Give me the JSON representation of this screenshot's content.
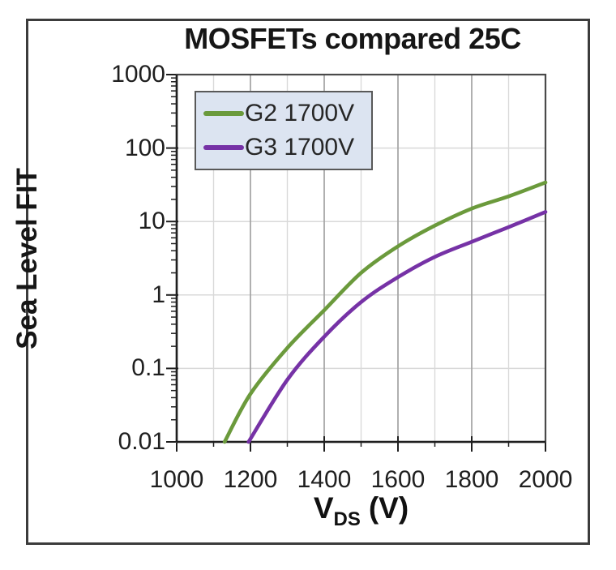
{
  "chart_data": {
    "type": "line",
    "title": "MOSFETs compared 25C",
    "ylabel": "Sea Level FIT",
    "xlabel": {
      "symbol": "V",
      "subscript": "DS",
      "unit": "(V)"
    },
    "x_axis": {
      "min": 1000,
      "max": 2000,
      "major_ticks": [
        1000,
        1200,
        1400,
        1600,
        1800,
        2000
      ],
      "minor_step": 100
    },
    "y_axis": {
      "scale": "log",
      "min": 0.01,
      "max": 1000,
      "decades": 5,
      "tick_labels": [
        "1000",
        "100",
        "10",
        "1",
        "0.1",
        "0.01"
      ],
      "tick_values": [
        1000,
        100,
        10,
        1,
        0.1,
        0.01
      ]
    },
    "grid": {
      "horizontal": "#d9d9d9",
      "vertical_minor": "#d9d9d9",
      "vertical_major": "#a3a3a3"
    },
    "axis_color": "#1f1f1f",
    "legend": {
      "fill": "#dce4f1",
      "border": "#595959"
    },
    "series": [
      {
        "id": "g2",
        "name": "G2 1700V",
        "color": "#6b9a3c",
        "points": [
          [
            1130,
            0.01
          ],
          [
            1200,
            0.045
          ],
          [
            1300,
            0.19
          ],
          [
            1400,
            0.62
          ],
          [
            1500,
            2.0
          ],
          [
            1600,
            4.6
          ],
          [
            1700,
            8.8
          ],
          [
            1800,
            15
          ],
          [
            1900,
            22
          ],
          [
            2000,
            34
          ]
        ]
      },
      {
        "id": "g3",
        "name": "G3 1700V",
        "color": "#7632a6",
        "points": [
          [
            1195,
            0.01
          ],
          [
            1300,
            0.07
          ],
          [
            1400,
            0.27
          ],
          [
            1500,
            0.8
          ],
          [
            1600,
            1.75
          ],
          [
            1700,
            3.3
          ],
          [
            1800,
            5.3
          ],
          [
            1900,
            8.4
          ],
          [
            2000,
            13.5
          ]
        ]
      }
    ]
  }
}
